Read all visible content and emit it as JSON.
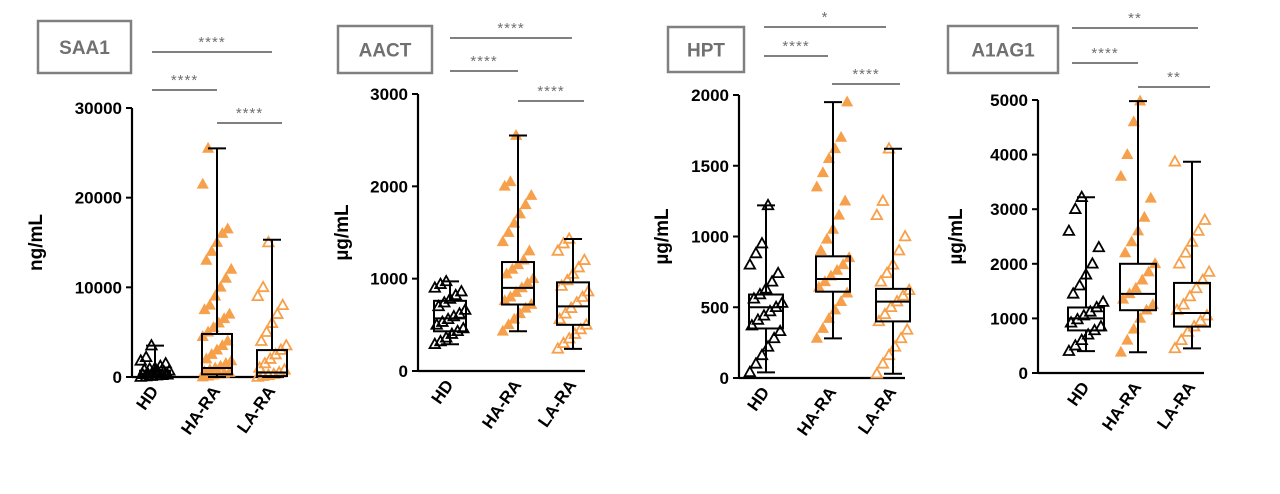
{
  "colors": {
    "hd": "#000000",
    "ha": "#F7A04B",
    "la": "#F7A04B",
    "sig": "#808080"
  },
  "chart_data": [
    {
      "type": "box",
      "title": "SAA1",
      "ylabel": "ng/mL",
      "ylim": [
        0,
        30000
      ],
      "yticks": [
        0,
        10000,
        20000,
        30000
      ],
      "ytick_labels": [
        "0",
        "10000",
        "20000",
        "30000"
      ],
      "categories": [
        "HD",
        "HA-RA",
        "LA-RA"
      ],
      "series": [
        {
          "name": "HD",
          "marker": "triangle-open",
          "min": 0,
          "q1": 100,
          "median": 300,
          "q3": 700,
          "max": 3500,
          "points": [
            0,
            50,
            100,
            150,
            200,
            250,
            300,
            350,
            400,
            500,
            600,
            700,
            800,
            900,
            1000,
            1200,
            1500,
            1800,
            2200,
            3500
          ]
        },
        {
          "name": "HA-RA",
          "marker": "triangle-filled",
          "min": 0,
          "q1": 300,
          "median": 1000,
          "q3": 4800,
          "max": 25500,
          "points": [
            0,
            100,
            200,
            300,
            400,
            500,
            600,
            800,
            1000,
            1200,
            1500,
            1800,
            2000,
            2500,
            3000,
            3500,
            4000,
            4500,
            5000,
            5500,
            6000,
            6500,
            7000,
            7500,
            8000,
            9000,
            10000,
            11000,
            12000,
            13000,
            14000,
            15000,
            16000,
            16500,
            21500,
            25500
          ]
        },
        {
          "name": "LA-RA",
          "marker": "triangle-open",
          "min": 0,
          "q1": 100,
          "median": 500,
          "q3": 3000,
          "max": 15300,
          "points": [
            0,
            100,
            200,
            300,
            500,
            800,
            1000,
            1500,
            2000,
            2500,
            3000,
            3500,
            4000,
            5000,
            6000,
            7000,
            8000,
            9000,
            10000,
            15000
          ]
        }
      ],
      "significance": [
        {
          "from": "HD",
          "to": "LA-RA",
          "label": "****"
        },
        {
          "from": "HD",
          "to": "HA-RA",
          "label": "****"
        },
        {
          "from": "HA-RA",
          "to": "LA-RA",
          "label": "****"
        }
      ]
    },
    {
      "type": "box",
      "title": "AACT",
      "ylabel": "µg/mL",
      "ylim": [
        0,
        3000
      ],
      "yticks": [
        0,
        1000,
        2000,
        3000
      ],
      "ytick_labels": [
        "0",
        "1000",
        "2000",
        "3000"
      ],
      "categories": [
        "HD",
        "HA-RA",
        "LA-RA"
      ],
      "series": [
        {
          "name": "HD",
          "marker": "triangle-open",
          "min": 290,
          "q1": 430,
          "median": 570,
          "q3": 760,
          "max": 970,
          "points": [
            290,
            320,
            360,
            400,
            430,
            460,
            500,
            530,
            560,
            590,
            620,
            660,
            700,
            740,
            780,
            820,
            860,
            900,
            940,
            970
          ]
        },
        {
          "name": "HA-RA",
          "marker": "triangle-filled",
          "min": 430,
          "q1": 720,
          "median": 900,
          "q3": 1180,
          "max": 2550,
          "points": [
            430,
            500,
            560,
            620,
            680,
            720,
            760,
            800,
            850,
            900,
            950,
            1000,
            1050,
            1100,
            1150,
            1200,
            1300,
            1400,
            1500,
            1600,
            1700,
            1800,
            1900,
            2000,
            2050,
            2550
          ]
        },
        {
          "name": "LA-RA",
          "marker": "triangle-open",
          "min": 240,
          "q1": 500,
          "median": 700,
          "q3": 960,
          "max": 1430,
          "points": [
            240,
            300,
            350,
            400,
            450,
            500,
            560,
            620,
            680,
            740,
            800,
            860,
            920,
            980,
            1050,
            1120,
            1200,
            1300,
            1380,
            1430
          ]
        }
      ],
      "significance": [
        {
          "from": "HD",
          "to": "LA-RA",
          "label": "****"
        },
        {
          "from": "HD",
          "to": "HA-RA",
          "label": "****"
        },
        {
          "from": "HA-RA",
          "to": "LA-RA",
          "label": "****"
        }
      ]
    },
    {
      "type": "box",
      "title": "HPT",
      "ylabel": "µg/mL",
      "ylim": [
        0,
        2000
      ],
      "yticks": [
        0,
        500,
        1000,
        1500,
        2000
      ],
      "ytick_labels": [
        "0",
        "500",
        "1000",
        "1500",
        "2000"
      ],
      "categories": [
        "HD",
        "HA-RA",
        "LA-RA"
      ],
      "series": [
        {
          "name": "HD",
          "marker": "triangle-open",
          "min": 40,
          "q1": 350,
          "median": 500,
          "q3": 590,
          "max": 1220,
          "points": [
            40,
            100,
            160,
            220,
            280,
            330,
            370,
            410,
            440,
            470,
            500,
            530,
            560,
            590,
            630,
            680,
            740,
            800,
            880,
            950,
            1220
          ]
        },
        {
          "name": "HA-RA",
          "marker": "triangle-filled",
          "min": 280,
          "q1": 610,
          "median": 700,
          "q3": 860,
          "max": 1950,
          "points": [
            280,
            350,
            420,
            480,
            540,
            600,
            640,
            680,
            720,
            760,
            800,
            850,
            900,
            980,
            1050,
            1150,
            1250,
            1350,
            1450,
            1550,
            1620,
            1700,
            1950
          ]
        },
        {
          "name": "LA-RA",
          "marker": "triangle-open",
          "min": 30,
          "q1": 400,
          "median": 540,
          "q3": 630,
          "max": 1620,
          "points": [
            30,
            100,
            160,
            220,
            280,
            340,
            400,
            450,
            500,
            540,
            580,
            620,
            680,
            740,
            800,
            900,
            1000,
            1150,
            1250,
            1620
          ]
        }
      ],
      "significance": [
        {
          "from": "HD",
          "to": "LA-RA",
          "label": "*"
        },
        {
          "from": "HD",
          "to": "HA-RA",
          "label": "****"
        },
        {
          "from": "HA-RA",
          "to": "LA-RA",
          "label": "****"
        }
      ]
    },
    {
      "type": "box",
      "title": "A1AG1",
      "ylabel": "µg/mL",
      "ylim": [
        0,
        5000
      ],
      "yticks": [
        0,
        1000,
        2000,
        3000,
        4000,
        5000
      ],
      "ytick_labels": [
        "0",
        "1000",
        "2000",
        "3000",
        "4000",
        "5000"
      ],
      "categories": [
        "HD",
        "HA-RA",
        "LA-RA"
      ],
      "series": [
        {
          "name": "HD",
          "marker": "triangle-open",
          "min": 400,
          "q1": 780,
          "median": 1000,
          "q3": 1200,
          "max": 3220,
          "points": [
            400,
            500,
            600,
            700,
            780,
            850,
            920,
            980,
            1050,
            1120,
            1200,
            1300,
            1450,
            1600,
            1800,
            2000,
            2300,
            2600,
            3000,
            3220
          ]
        },
        {
          "name": "HA-RA",
          "marker": "triangle-filled",
          "min": 380,
          "q1": 1150,
          "median": 1450,
          "q3": 2000,
          "max": 4980,
          "points": [
            380,
            600,
            800,
            1000,
            1150,
            1250,
            1350,
            1450,
            1550,
            1700,
            1850,
            2000,
            2200,
            2400,
            2600,
            2850,
            3200,
            3600,
            4000,
            4600,
            4980
          ]
        },
        {
          "name": "LA-RA",
          "marker": "triangle-open",
          "min": 450,
          "q1": 850,
          "median": 1100,
          "q3": 1650,
          "max": 3870,
          "points": [
            450,
            600,
            750,
            850,
            950,
            1050,
            1150,
            1250,
            1400,
            1550,
            1700,
            1850,
            2000,
            2200,
            2400,
            2600,
            2800,
            3870
          ]
        }
      ],
      "significance": [
        {
          "from": "HD",
          "to": "LA-RA",
          "label": "**"
        },
        {
          "from": "HD",
          "to": "HA-RA",
          "label": "****"
        },
        {
          "from": "HA-RA",
          "to": "LA-RA",
          "label": "**"
        }
      ]
    }
  ]
}
